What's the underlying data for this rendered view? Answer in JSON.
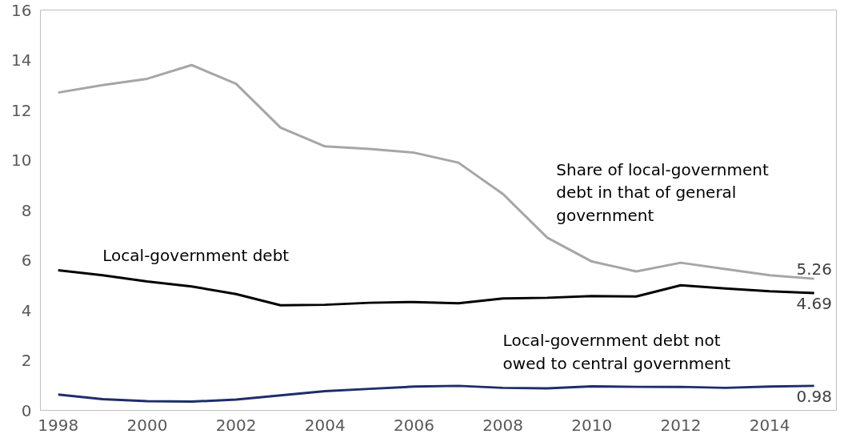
{
  "chart_data": {
    "type": "line",
    "x": [
      1998,
      1999,
      2000,
      2001,
      2002,
      2003,
      2004,
      2005,
      2006,
      2007,
      2008,
      2009,
      2010,
      2011,
      2012,
      2013,
      2014,
      2015
    ],
    "series": [
      {
        "name": "Share of local-government\ndebt in that of general\ngovernment",
        "color": "#a6a6a6",
        "values": [
          12.7,
          13.0,
          13.25,
          13.8,
          13.05,
          11.3,
          10.55,
          10.45,
          10.3,
          9.9,
          8.65,
          6.9,
          5.95,
          5.55,
          5.9,
          5.65,
          5.4,
          5.26
        ],
        "value_labels": [
          null,
          null,
          null,
          null,
          null,
          null,
          null,
          null,
          null,
          null,
          null,
          null,
          null,
          null,
          null,
          null,
          null,
          "5.26"
        ]
      },
      {
        "name": "Local-government debt",
        "color": "#000000",
        "values": [
          5.6,
          5.4,
          5.15,
          4.95,
          4.65,
          4.2,
          4.22,
          4.3,
          4.33,
          4.28,
          4.47,
          4.5,
          4.57,
          4.55,
          5.0,
          4.87,
          4.76,
          4.69
        ],
        "value_labels": [
          null,
          null,
          null,
          null,
          null,
          null,
          null,
          null,
          null,
          null,
          null,
          null,
          null,
          null,
          null,
          null,
          null,
          "4.69"
        ]
      },
      {
        "name": "Local-government debt not\nowed to central government",
        "color": "#1f2d6b",
        "values": [
          0.63,
          0.45,
          0.37,
          0.35,
          0.43,
          0.6,
          0.77,
          0.86,
          0.95,
          0.98,
          0.9,
          0.88,
          0.96,
          0.94,
          0.94,
          0.9,
          0.95,
          0.98
        ],
        "value_labels": [
          null,
          null,
          null,
          null,
          null,
          null,
          null,
          null,
          null,
          null,
          null,
          null,
          null,
          null,
          null,
          null,
          null,
          "0.98"
        ]
      }
    ],
    "xlim": [
      1997.6,
      2015.5
    ],
    "xticks": [
      1998,
      2000,
      2002,
      2004,
      2006,
      2008,
      2010,
      2012,
      2014
    ],
    "ylim": [
      0,
      16
    ],
    "yticks": [
      0,
      2,
      4,
      6,
      8,
      10,
      12,
      14,
      16
    ],
    "grid": false,
    "marker": "none",
    "line_style": "solid"
  }
}
